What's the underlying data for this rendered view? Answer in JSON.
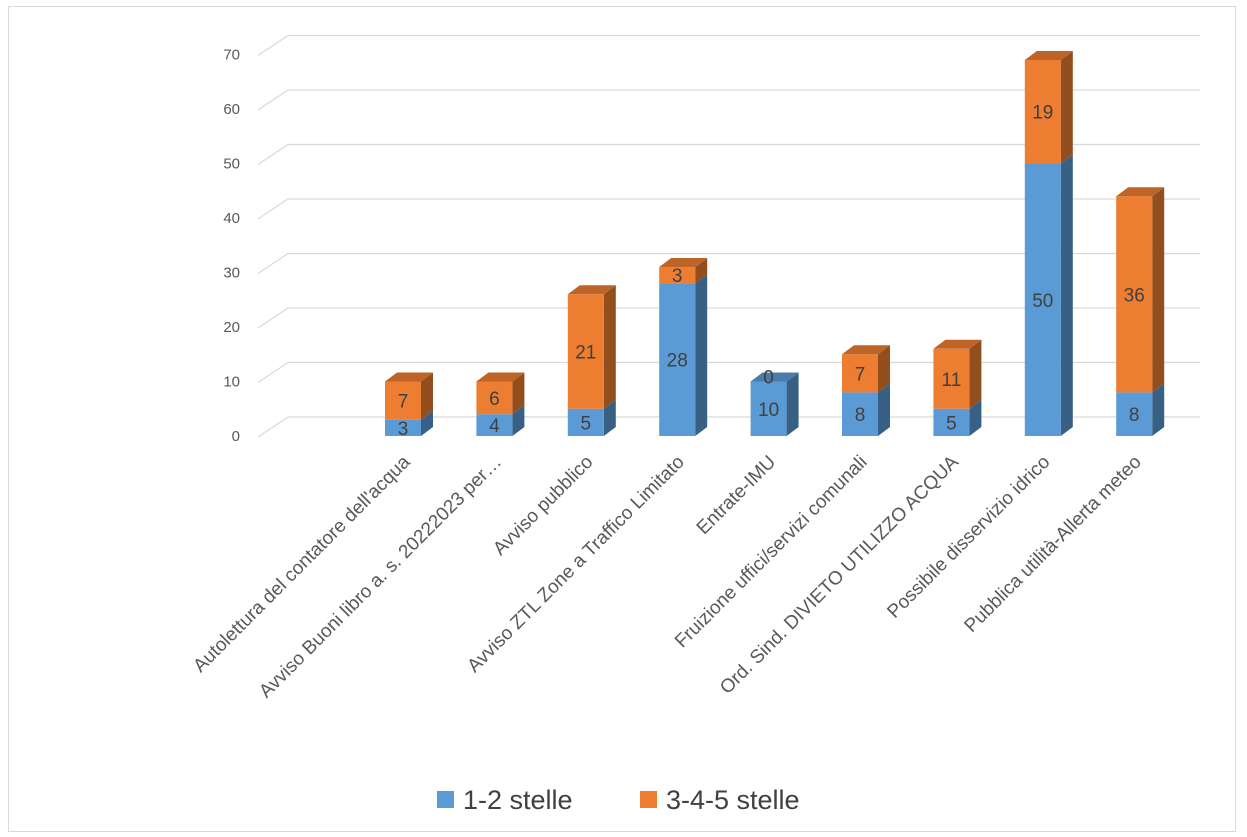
{
  "chart_data": {
    "type": "bar",
    "stacked": true,
    "three_d": true,
    "categories": [
      "Autolettura del contatore dell'acqua",
      "Avviso  Buoni libro a. s. 20222023 per…",
      "Avviso pubblico",
      "Avviso ZTL Zone a Traffico Limitato",
      "Entrate-IMU",
      "Fruizione uffici/servizi comunali",
      "Ord. Sind.  DIVIETO UTILIZZO ACQUA",
      "Possibile disservizio idrico",
      "Pubblica utilità-Allerta meteo"
    ],
    "series": [
      {
        "name": "1-2 stelle",
        "color": "#5b9bd5",
        "values": [
          3,
          4,
          5,
          28,
          10,
          8,
          5,
          50,
          8
        ]
      },
      {
        "name": "3-4-5 stelle",
        "color": "#ed7d31",
        "values": [
          7,
          6,
          21,
          3,
          0,
          7,
          11,
          19,
          36
        ]
      }
    ],
    "data_labels": [
      [
        "3",
        "4",
        "5",
        "28",
        "10",
        "8",
        "5",
        "50",
        "8"
      ],
      [
        "7",
        "6",
        "21",
        "3",
        "0",
        "7",
        "11",
        "19",
        "36"
      ]
    ],
    "yticks": [
      "0",
      "10",
      "20",
      "30",
      "40",
      "50",
      "60",
      "70"
    ],
    "ylim": [
      0,
      70
    ],
    "grid": true,
    "legend": "bottom",
    "title": "",
    "xlabel": "",
    "ylabel": ""
  }
}
